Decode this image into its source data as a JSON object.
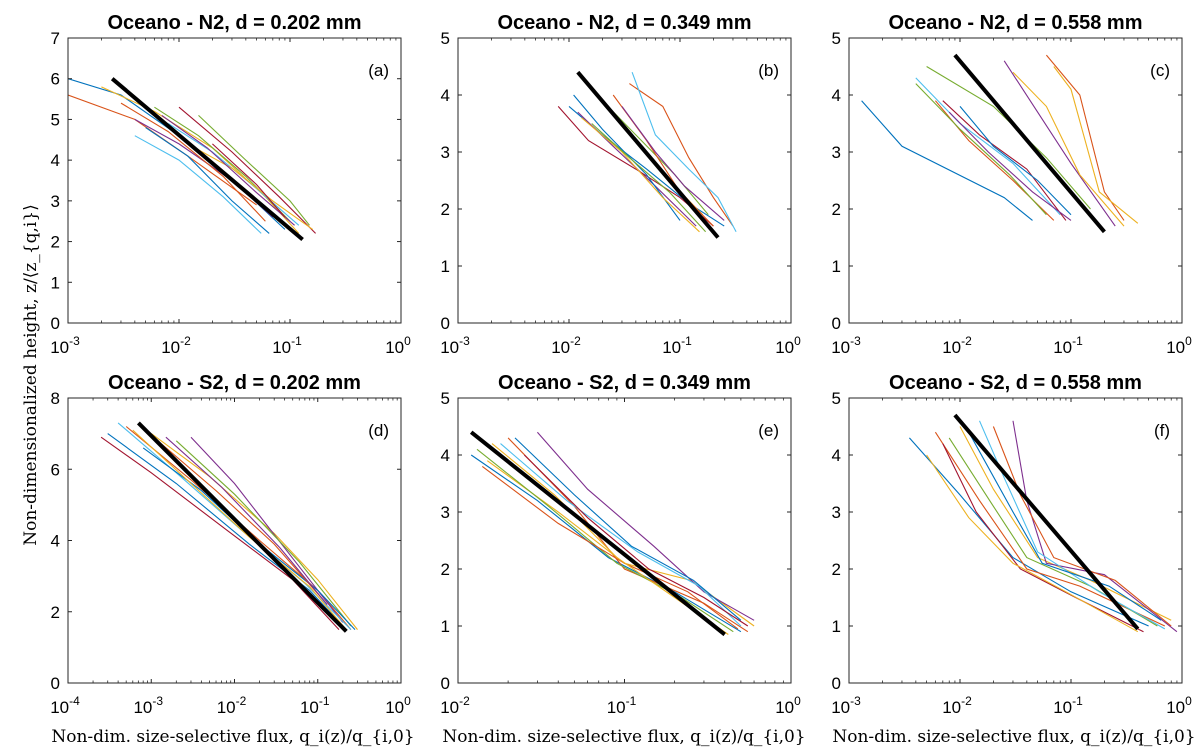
{
  "figure": {
    "ylabel": "Non-dimensionalized height, z/⟨z_{q,i}⟩",
    "xlabel": "Non-dim. size-selective flux, q_i(z)/q_{i,0}"
  },
  "series_colors": [
    "#0072BD",
    "#D95319",
    "#EDB120",
    "#7E2F8E",
    "#77AC30",
    "#4DBEEE",
    "#A2142F"
  ],
  "fit_color": "#000000",
  "chart_data": [
    {
      "type": "line",
      "title": "Oceano - N2, d = 0.202 mm",
      "panel_label": "(a)",
      "xscale": "log",
      "xlim": [
        0.001,
        1
      ],
      "ylim": [
        0,
        7
      ],
      "xticks": [
        -3,
        -2,
        -1,
        0
      ],
      "yticks": [
        0,
        1,
        2,
        3,
        4,
        5,
        6,
        7
      ],
      "fit": {
        "x": [
          0.0025,
          0.13
        ],
        "y": [
          6.0,
          2.05
        ]
      },
      "series": [
        {
          "x": [
            0.001,
            0.003,
            0.01,
            0.04,
            0.09
          ],
          "y": [
            6.0,
            5.6,
            4.6,
            3.2,
            2.3
          ]
        },
        {
          "x": [
            0.001,
            0.004,
            0.012,
            0.05
          ],
          "y": [
            5.6,
            5.0,
            4.1,
            2.9
          ]
        },
        {
          "x": [
            0.002,
            0.006,
            0.02,
            0.06,
            0.12
          ],
          "y": [
            5.8,
            5.2,
            4.3,
            3.1,
            2.2
          ]
        },
        {
          "x": [
            0.004,
            0.01,
            0.03,
            0.07
          ],
          "y": [
            5.0,
            4.4,
            3.5,
            2.6
          ]
        },
        {
          "x": [
            0.006,
            0.015,
            0.04,
            0.1
          ],
          "y": [
            5.3,
            4.6,
            3.6,
            2.5
          ]
        },
        {
          "x": [
            0.008,
            0.02,
            0.05,
            0.12
          ],
          "y": [
            4.9,
            4.2,
            3.3,
            2.4
          ]
        },
        {
          "x": [
            0.01,
            0.03,
            0.08,
            0.17
          ],
          "y": [
            5.3,
            4.2,
            3.1,
            2.2
          ]
        },
        {
          "x": [
            0.005,
            0.012,
            0.03,
            0.065
          ],
          "y": [
            4.8,
            4.1,
            3.0,
            2.2
          ]
        },
        {
          "x": [
            0.003,
            0.008,
            0.025,
            0.06
          ],
          "y": [
            5.4,
            4.7,
            3.6,
            2.5
          ]
        },
        {
          "x": [
            0.012,
            0.03,
            0.07,
            0.16
          ],
          "y": [
            4.4,
            3.8,
            3.0,
            2.3
          ]
        },
        {
          "x": [
            0.007,
            0.018,
            0.05,
            0.11
          ],
          "y": [
            5.1,
            4.3,
            3.2,
            2.4
          ]
        },
        {
          "x": [
            0.015,
            0.04,
            0.1,
            0.15
          ],
          "y": [
            5.1,
            4.0,
            3.0,
            2.4
          ]
        },
        {
          "x": [
            0.004,
            0.01,
            0.025,
            0.055
          ],
          "y": [
            4.6,
            4.0,
            3.1,
            2.2
          ]
        },
        {
          "x": [
            0.02,
            0.05,
            0.09
          ],
          "y": [
            4.4,
            3.4,
            2.6
          ]
        }
      ]
    },
    {
      "type": "line",
      "title": "Oceano - N2, d = 0.349 mm",
      "panel_label": "(b)",
      "xscale": "log",
      "xlim": [
        0.001,
        1
      ],
      "ylim": [
        0,
        5
      ],
      "xticks": [
        -3,
        -2,
        -1,
        0
      ],
      "yticks": [
        0,
        1,
        2,
        3,
        4,
        5
      ],
      "fit": {
        "x": [
          0.012,
          0.22
        ],
        "y": [
          4.4,
          1.5
        ]
      },
      "series": [
        {
          "x": [
            0.01,
            0.02,
            0.05,
            0.12,
            0.25
          ],
          "y": [
            3.8,
            3.3,
            2.7,
            2.1,
            1.7
          ]
        },
        {
          "x": [
            0.035,
            0.07,
            0.12,
            0.2,
            0.3
          ],
          "y": [
            4.2,
            3.8,
            2.9,
            2.2,
            1.7
          ]
        },
        {
          "x": [
            0.015,
            0.03,
            0.08,
            0.16
          ],
          "y": [
            4.2,
            3.5,
            2.5,
            1.9
          ]
        },
        {
          "x": [
            0.012,
            0.025,
            0.06,
            0.14
          ],
          "y": [
            3.7,
            3.1,
            2.4,
            1.7
          ]
        },
        {
          "x": [
            0.02,
            0.04,
            0.09,
            0.18
          ],
          "y": [
            3.9,
            3.3,
            2.6,
            1.9
          ]
        },
        {
          "x": [
            0.037,
            0.06,
            0.12,
            0.22,
            0.32
          ],
          "y": [
            4.4,
            3.3,
            2.7,
            2.2,
            1.6
          ]
        },
        {
          "x": [
            0.008,
            0.015,
            0.04,
            0.1,
            0.2
          ],
          "y": [
            3.8,
            3.2,
            2.7,
            2.2,
            1.7
          ]
        },
        {
          "x": [
            0.011,
            0.02,
            0.05,
            0.1
          ],
          "y": [
            4.0,
            3.4,
            2.6,
            1.8
          ]
        },
        {
          "x": [
            0.025,
            0.05,
            0.1,
            0.2
          ],
          "y": [
            4.0,
            3.2,
            2.3,
            1.7
          ]
        },
        {
          "x": [
            0.013,
            0.03,
            0.07,
            0.15
          ],
          "y": [
            3.6,
            3.0,
            2.2,
            1.6
          ]
        },
        {
          "x": [
            0.03,
            0.06,
            0.11,
            0.25
          ],
          "y": [
            3.8,
            3.0,
            2.4,
            1.8
          ]
        },
        {
          "x": [
            0.016,
            0.035,
            0.08,
            0.17
          ],
          "y": [
            3.5,
            2.9,
            2.3,
            1.6
          ]
        }
      ]
    },
    {
      "type": "line",
      "title": "Oceano - N2, d = 0.558 mm",
      "panel_label": "(c)",
      "xscale": "log",
      "xlim": [
        0.001,
        1
      ],
      "ylim": [
        0,
        5
      ],
      "xticks": [
        -3,
        -2,
        -1,
        0
      ],
      "yticks": [
        0,
        1,
        2,
        3,
        4,
        5
      ],
      "fit": {
        "x": [
          0.009,
          0.2
        ],
        "y": [
          4.7,
          1.6
        ]
      },
      "series": [
        {
          "x": [
            0.0013,
            0.003,
            0.025,
            0.045
          ],
          "y": [
            3.9,
            3.1,
            2.2,
            1.8
          ]
        },
        {
          "x": [
            0.06,
            0.12,
            0.2,
            0.3
          ],
          "y": [
            4.7,
            4.0,
            2.3,
            1.8
          ]
        },
        {
          "x": [
            0.07,
            0.1,
            0.18,
            0.4
          ],
          "y": [
            4.5,
            4.1,
            2.3,
            1.75
          ]
        },
        {
          "x": [
            0.025,
            0.05,
            0.1,
            0.25
          ],
          "y": [
            4.6,
            3.7,
            2.8,
            1.7
          ]
        },
        {
          "x": [
            0.005,
            0.02,
            0.06,
            0.15
          ],
          "y": [
            4.5,
            3.8,
            2.9,
            2.0
          ]
        },
        {
          "x": [
            0.004,
            0.01,
            0.03,
            0.08
          ],
          "y": [
            4.3,
            3.5,
            2.8,
            1.9
          ]
        },
        {
          "x": [
            0.007,
            0.015,
            0.04,
            0.09
          ],
          "y": [
            3.9,
            3.3,
            2.7,
            1.8
          ]
        },
        {
          "x": [
            0.01,
            0.02,
            0.05,
            0.1
          ],
          "y": [
            3.8,
            3.1,
            2.5,
            1.9
          ]
        },
        {
          "x": [
            0.006,
            0.012,
            0.03,
            0.07
          ],
          "y": [
            3.9,
            3.2,
            2.5,
            1.8
          ]
        },
        {
          "x": [
            0.03,
            0.06,
            0.12,
            0.3
          ],
          "y": [
            4.4,
            3.8,
            2.6,
            1.7
          ]
        },
        {
          "x": [
            0.008,
            0.018,
            0.045,
            0.1
          ],
          "y": [
            3.7,
            3.0,
            2.3,
            1.8
          ]
        },
        {
          "x": [
            0.004,
            0.01,
            0.028,
            0.06
          ],
          "y": [
            4.2,
            3.4,
            2.6,
            1.9
          ]
        }
      ]
    },
    {
      "type": "line",
      "title": "Oceano - S2, d = 0.202 mm",
      "panel_label": "(d)",
      "xscale": "log",
      "xlim": [
        0.0001,
        1
      ],
      "ylim": [
        0,
        8
      ],
      "xticks": [
        -4,
        -3,
        -2,
        -1,
        0
      ],
      "yticks": [
        0,
        2,
        4,
        6,
        8
      ],
      "fit": {
        "x": [
          0.0007,
          0.22
        ],
        "y": [
          7.3,
          1.45
        ]
      },
      "series": [
        {
          "x": [
            0.0003,
            0.002,
            0.015,
            0.08,
            0.2
          ],
          "y": [
            7.0,
            5.6,
            3.9,
            2.6,
            1.6
          ]
        },
        {
          "x": [
            0.0005,
            0.003,
            0.02,
            0.1,
            0.25
          ],
          "y": [
            7.2,
            5.7,
            4.0,
            2.6,
            1.5
          ]
        },
        {
          "x": [
            0.001,
            0.005,
            0.03,
            0.1,
            0.3
          ],
          "y": [
            7.0,
            5.8,
            4.2,
            2.9,
            1.5
          ]
        },
        {
          "x": [
            0.003,
            0.01,
            0.05,
            0.2
          ],
          "y": [
            6.9,
            5.6,
            3.5,
            1.7
          ]
        },
        {
          "x": [
            0.002,
            0.01,
            0.06,
            0.25
          ],
          "y": [
            6.8,
            5.3,
            3.4,
            1.6
          ]
        },
        {
          "x": [
            0.0004,
            0.002,
            0.012,
            0.07,
            0.25
          ],
          "y": [
            7.3,
            5.9,
            4.3,
            2.8,
            1.5
          ]
        },
        {
          "x": [
            0.00025,
            0.001,
            0.008,
            0.05,
            0.18
          ],
          "y": [
            6.9,
            5.9,
            4.3,
            2.9,
            1.5
          ]
        },
        {
          "x": [
            0.0008,
            0.004,
            0.02,
            0.1,
            0.28
          ],
          "y": [
            6.6,
            5.4,
            3.9,
            2.6,
            1.5
          ]
        },
        {
          "x": [
            0.0012,
            0.006,
            0.03,
            0.12
          ],
          "y": [
            6.8,
            5.4,
            3.9,
            2.3
          ]
        },
        {
          "x": [
            0.0006,
            0.003,
            0.015,
            0.08,
            0.22
          ],
          "y": [
            7.1,
            5.6,
            4.1,
            2.7,
            1.5
          ]
        },
        {
          "x": [
            0.0015,
            0.007,
            0.035,
            0.13
          ],
          "y": [
            6.9,
            5.5,
            3.8,
            2.2
          ]
        }
      ]
    },
    {
      "type": "line",
      "title": "Oceano - S2, d = 0.349 mm",
      "panel_label": "(e)",
      "xscale": "log",
      "xlim": [
        0.01,
        1
      ],
      "ylim": [
        0,
        5
      ],
      "xticks": [
        -2,
        -1,
        0
      ],
      "yticks": [
        0,
        1,
        2,
        3,
        4,
        5
      ],
      "fit": {
        "x": [
          0.012,
          0.4
        ],
        "y": [
          4.4,
          0.85
        ]
      },
      "series": [
        {
          "x": [
            0.012,
            0.03,
            0.08,
            0.2,
            0.5
          ],
          "y": [
            4.0,
            3.2,
            2.2,
            1.6,
            0.9
          ]
        },
        {
          "x": [
            0.02,
            0.05,
            0.1,
            0.3,
            0.55
          ],
          "y": [
            4.3,
            3.1,
            2.0,
            1.4,
            0.9
          ]
        },
        {
          "x": [
            0.015,
            0.04,
            0.1,
            0.25,
            0.6
          ],
          "y": [
            3.9,
            3.0,
            2.1,
            1.8,
            1.0
          ]
        },
        {
          "x": [
            0.03,
            0.06,
            0.15,
            0.3,
            0.6
          ],
          "y": [
            4.4,
            3.4,
            2.4,
            1.6,
            1.1
          ]
        },
        {
          "x": [
            0.013,
            0.035,
            0.09,
            0.22,
            0.45
          ],
          "y": [
            4.1,
            3.1,
            2.1,
            1.5,
            0.9
          ]
        },
        {
          "x": [
            0.018,
            0.045,
            0.12,
            0.28,
            0.5
          ],
          "y": [
            4.2,
            3.2,
            2.3,
            1.7,
            1.0
          ]
        },
        {
          "x": [
            0.025,
            0.06,
            0.14,
            0.3,
            0.55
          ],
          "y": [
            4.0,
            2.9,
            2.0,
            1.5,
            1.0
          ]
        },
        {
          "x": [
            0.022,
            0.05,
            0.11,
            0.26,
            0.5
          ],
          "y": [
            4.3,
            3.3,
            2.4,
            1.8,
            1.1
          ]
        },
        {
          "x": [
            0.014,
            0.04,
            0.1,
            0.24,
            0.48
          ],
          "y": [
            3.8,
            2.8,
            2.1,
            1.6,
            0.95
          ]
        },
        {
          "x": [
            0.016,
            0.038,
            0.09,
            0.2,
            0.42
          ],
          "y": [
            4.2,
            3.3,
            2.2,
            1.5,
            0.85
          ]
        }
      ]
    },
    {
      "type": "line",
      "title": "Oceano - S2, d = 0.558 mm",
      "panel_label": "(f)",
      "xscale": "log",
      "xlim": [
        0.001,
        1
      ],
      "ylim": [
        0,
        5
      ],
      "xticks": [
        -3,
        -2,
        -1,
        0
      ],
      "yticks": [
        0,
        1,
        2,
        3,
        4,
        5
      ],
      "fit": {
        "x": [
          0.009,
          0.4
        ],
        "y": [
          4.7,
          0.95
        ]
      },
      "series": [
        {
          "x": [
            0.0035,
            0.01,
            0.03,
            0.1,
            0.5
          ],
          "y": [
            4.3,
            3.3,
            2.2,
            1.6,
            1.0
          ]
        },
        {
          "x": [
            0.006,
            0.015,
            0.04,
            0.12,
            0.7
          ],
          "y": [
            4.4,
            3.2,
            2.0,
            1.7,
            1.0
          ]
        },
        {
          "x": [
            0.01,
            0.02,
            0.05,
            0.15,
            0.8
          ],
          "y": [
            4.5,
            3.4,
            2.2,
            1.8,
            1.1
          ]
        },
        {
          "x": [
            0.03,
            0.04,
            0.06,
            0.2,
            0.9
          ],
          "y": [
            4.6,
            3.2,
            2.1,
            1.9,
            0.9
          ]
        },
        {
          "x": [
            0.008,
            0.02,
            0.04,
            0.15,
            0.6
          ],
          "y": [
            4.3,
            3.1,
            2.2,
            1.7,
            1.0
          ]
        },
        {
          "x": [
            0.015,
            0.025,
            0.05,
            0.18,
            0.7
          ],
          "y": [
            4.6,
            3.6,
            2.3,
            1.6,
            0.95
          ]
        },
        {
          "x": [
            0.007,
            0.014,
            0.035,
            0.11,
            0.45
          ],
          "y": [
            4.2,
            3.0,
            2.0,
            1.5,
            0.9
          ]
        },
        {
          "x": [
            0.012,
            0.03,
            0.055,
            0.22,
            0.65
          ],
          "y": [
            4.4,
            3.0,
            2.1,
            1.7,
            1.1
          ]
        },
        {
          "x": [
            0.02,
            0.035,
            0.07,
            0.25,
            0.8
          ],
          "y": [
            4.5,
            3.3,
            2.2,
            1.8,
            1.0
          ]
        },
        {
          "x": [
            0.005,
            0.012,
            0.03,
            0.09,
            0.4
          ],
          "y": [
            4.0,
            2.9,
            2.1,
            1.6,
            0.9
          ]
        }
      ]
    }
  ]
}
